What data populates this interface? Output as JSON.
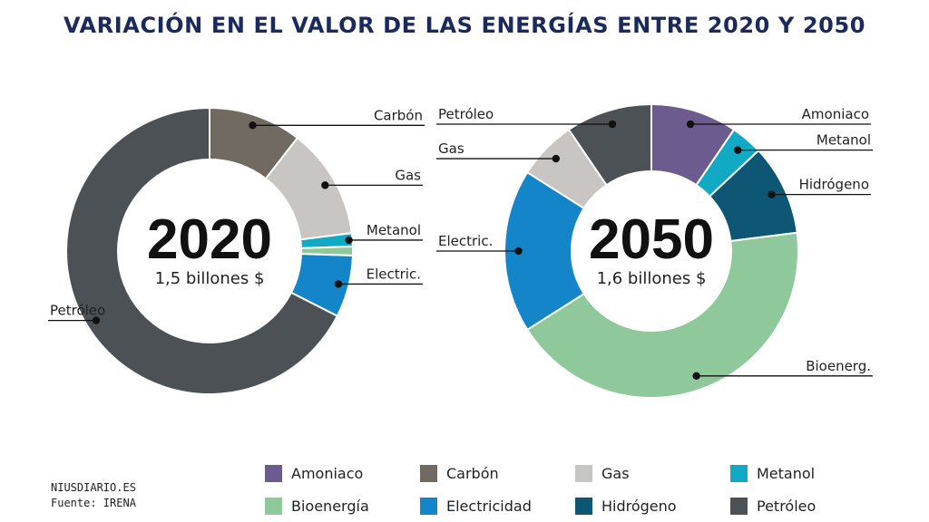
{
  "title": "VARIACIÓN EN EL VALOR DE LAS ENERGÍAS ENTRE 2020 Y 2050",
  "source": {
    "line1": "NIUSDIARIO.ES",
    "line2": "Fuente: IRENA"
  },
  "legend": [
    {
      "label": "Amoniaco",
      "color": "#6b5b8e"
    },
    {
      "label": "Carbón",
      "color": "#716a60"
    },
    {
      "label": "Gas",
      "color": "#c8c5c2"
    },
    {
      "label": "Metanol",
      "color": "#12a9c4"
    },
    {
      "label": "Bioenergía",
      "color": "#8ec89b"
    },
    {
      "label": "Electricidad",
      "color": "#1585c9"
    },
    {
      "label": "Hidrógeno",
      "color": "#0d5775"
    },
    {
      "label": "Petróleo",
      "color": "#4b5155"
    }
  ],
  "chart_data": [
    {
      "type": "pie",
      "center_year": "2020",
      "center_value": "1,5 billones $",
      "slices": [
        {
          "name": "Carbón",
          "label": "Carbón",
          "value": 10.5,
          "color": "#716a60"
        },
        {
          "name": "Gas",
          "label": "Gas",
          "value": 12.5,
          "color": "#c8c5c2"
        },
        {
          "name": "Metanol",
          "label": "Metanol",
          "value": 1.5,
          "color": "#12a9c4"
        },
        {
          "name": "Bioenergía",
          "label": "",
          "value": 1.0,
          "color": "#8ec89b"
        },
        {
          "name": "Electricidad",
          "label": "Electric.",
          "value": 7.0,
          "color": "#1585c9"
        },
        {
          "name": "Petróleo",
          "label": "Petróleo",
          "value": 67.5,
          "color": "#4b5155"
        }
      ]
    },
    {
      "type": "pie",
      "center_year": "2050",
      "center_value": "1,6 billones $",
      "slices": [
        {
          "name": "Amoniaco",
          "label": "Amoniaco",
          "value": 9.5,
          "color": "#6b5b8e"
        },
        {
          "name": "Metanol",
          "label": "Metanol",
          "value": 3.5,
          "color": "#12a9c4"
        },
        {
          "name": "Hidrógeno",
          "label": "Hidrógeno",
          "value": 10.0,
          "color": "#0d5775"
        },
        {
          "name": "Bioenergía",
          "label": "Bioenerg.",
          "value": 43.0,
          "color": "#8ec89b"
        },
        {
          "name": "Electricidad",
          "label": "Electric.",
          "value": 18.0,
          "color": "#1585c9"
        },
        {
          "name": "Gas",
          "label": "Gas",
          "value": 6.5,
          "color": "#c8c5c2"
        },
        {
          "name": "Petróleo",
          "label": "Petróleo",
          "value": 9.5,
          "color": "#4b5155"
        }
      ]
    }
  ]
}
